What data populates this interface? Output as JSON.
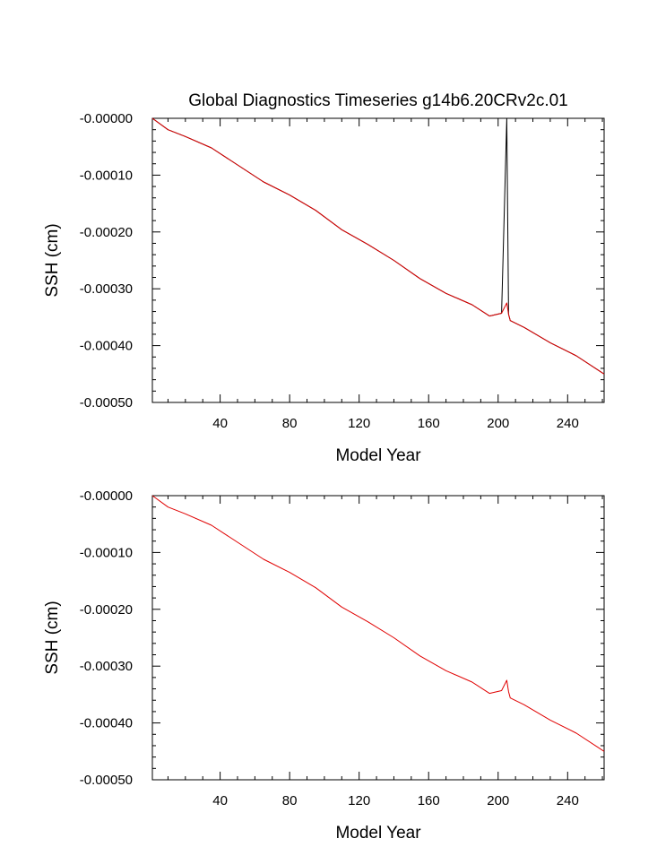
{
  "chart_data": [
    {
      "type": "line",
      "title": "Global Diagnostics Timeseries g14b6.20CRv2c.01",
      "xlabel": "Model Year",
      "ylabel": "SSH (cm)",
      "xlim": [
        1,
        261
      ],
      "ylim": [
        -0.0005,
        0.0
      ],
      "x_ticks": [
        40,
        80,
        120,
        160,
        200,
        240
      ],
      "y_ticks": [
        0.0,
        -0.0001,
        -0.0002,
        -0.0003,
        -0.0004,
        -0.0005
      ],
      "y_tick_labels": [
        "-0.00000",
        "-0.00010",
        "-0.00020",
        "-0.00030",
        "-0.00040",
        "-0.00050"
      ],
      "grid": false,
      "series": [
        {
          "color": "#000000",
          "x": [
            1,
            10,
            20,
            35,
            50,
            65,
            80,
            95,
            110,
            125,
            140,
            155,
            170,
            185,
            195,
            202,
            205,
            206,
            207,
            215,
            230,
            245,
            261
          ],
          "y": [
            0.0,
            -2e-05,
            -3.2e-05,
            -5.2e-05,
            -8.2e-05,
            -0.000112,
            -0.000135,
            -0.000162,
            -0.000196,
            -0.000222,
            -0.00025,
            -0.000282,
            -0.000308,
            -0.000328,
            -0.000348,
            -0.000343,
            0.0,
            -0.000345,
            -0.000356,
            -0.000368,
            -0.000395,
            -0.000418,
            -0.00045
          ]
        },
        {
          "color": "#e00000",
          "x": [
            1,
            10,
            20,
            35,
            50,
            65,
            80,
            95,
            110,
            125,
            140,
            155,
            170,
            185,
            195,
            202,
            205,
            206,
            207,
            215,
            230,
            245,
            261
          ],
          "y": [
            0.0,
            -2e-05,
            -3.2e-05,
            -5.2e-05,
            -8.2e-05,
            -0.000112,
            -0.000135,
            -0.000162,
            -0.000196,
            -0.000222,
            -0.00025,
            -0.000282,
            -0.000308,
            -0.000328,
            -0.000348,
            -0.000343,
            -0.000325,
            -0.000345,
            -0.000356,
            -0.000368,
            -0.000395,
            -0.000418,
            -0.00045
          ]
        }
      ]
    },
    {
      "type": "line",
      "title": "",
      "xlabel": "Model Year",
      "ylabel": "SSH (cm)",
      "xlim": [
        1,
        261
      ],
      "ylim": [
        -0.0005,
        0.0
      ],
      "x_ticks": [
        40,
        80,
        120,
        160,
        200,
        240
      ],
      "y_ticks": [
        0.0,
        -0.0001,
        -0.0002,
        -0.0003,
        -0.0004,
        -0.0005
      ],
      "y_tick_labels": [
        "-0.00000",
        "-0.00010",
        "-0.00020",
        "-0.00030",
        "-0.00040",
        "-0.00050"
      ],
      "grid": false,
      "series": [
        {
          "color": "#e00000",
          "x": [
            1,
            10,
            20,
            35,
            50,
            65,
            80,
            95,
            110,
            125,
            140,
            155,
            170,
            185,
            195,
            202,
            205,
            206,
            207,
            215,
            230,
            245,
            261
          ],
          "y": [
            0.0,
            -2e-05,
            -3.2e-05,
            -5.2e-05,
            -8.2e-05,
            -0.000112,
            -0.000135,
            -0.000162,
            -0.000196,
            -0.000222,
            -0.00025,
            -0.000282,
            -0.000308,
            -0.000328,
            -0.000348,
            -0.000343,
            -0.000325,
            -0.000345,
            -0.000356,
            -0.000368,
            -0.000395,
            -0.000418,
            -0.00045
          ]
        }
      ]
    }
  ]
}
